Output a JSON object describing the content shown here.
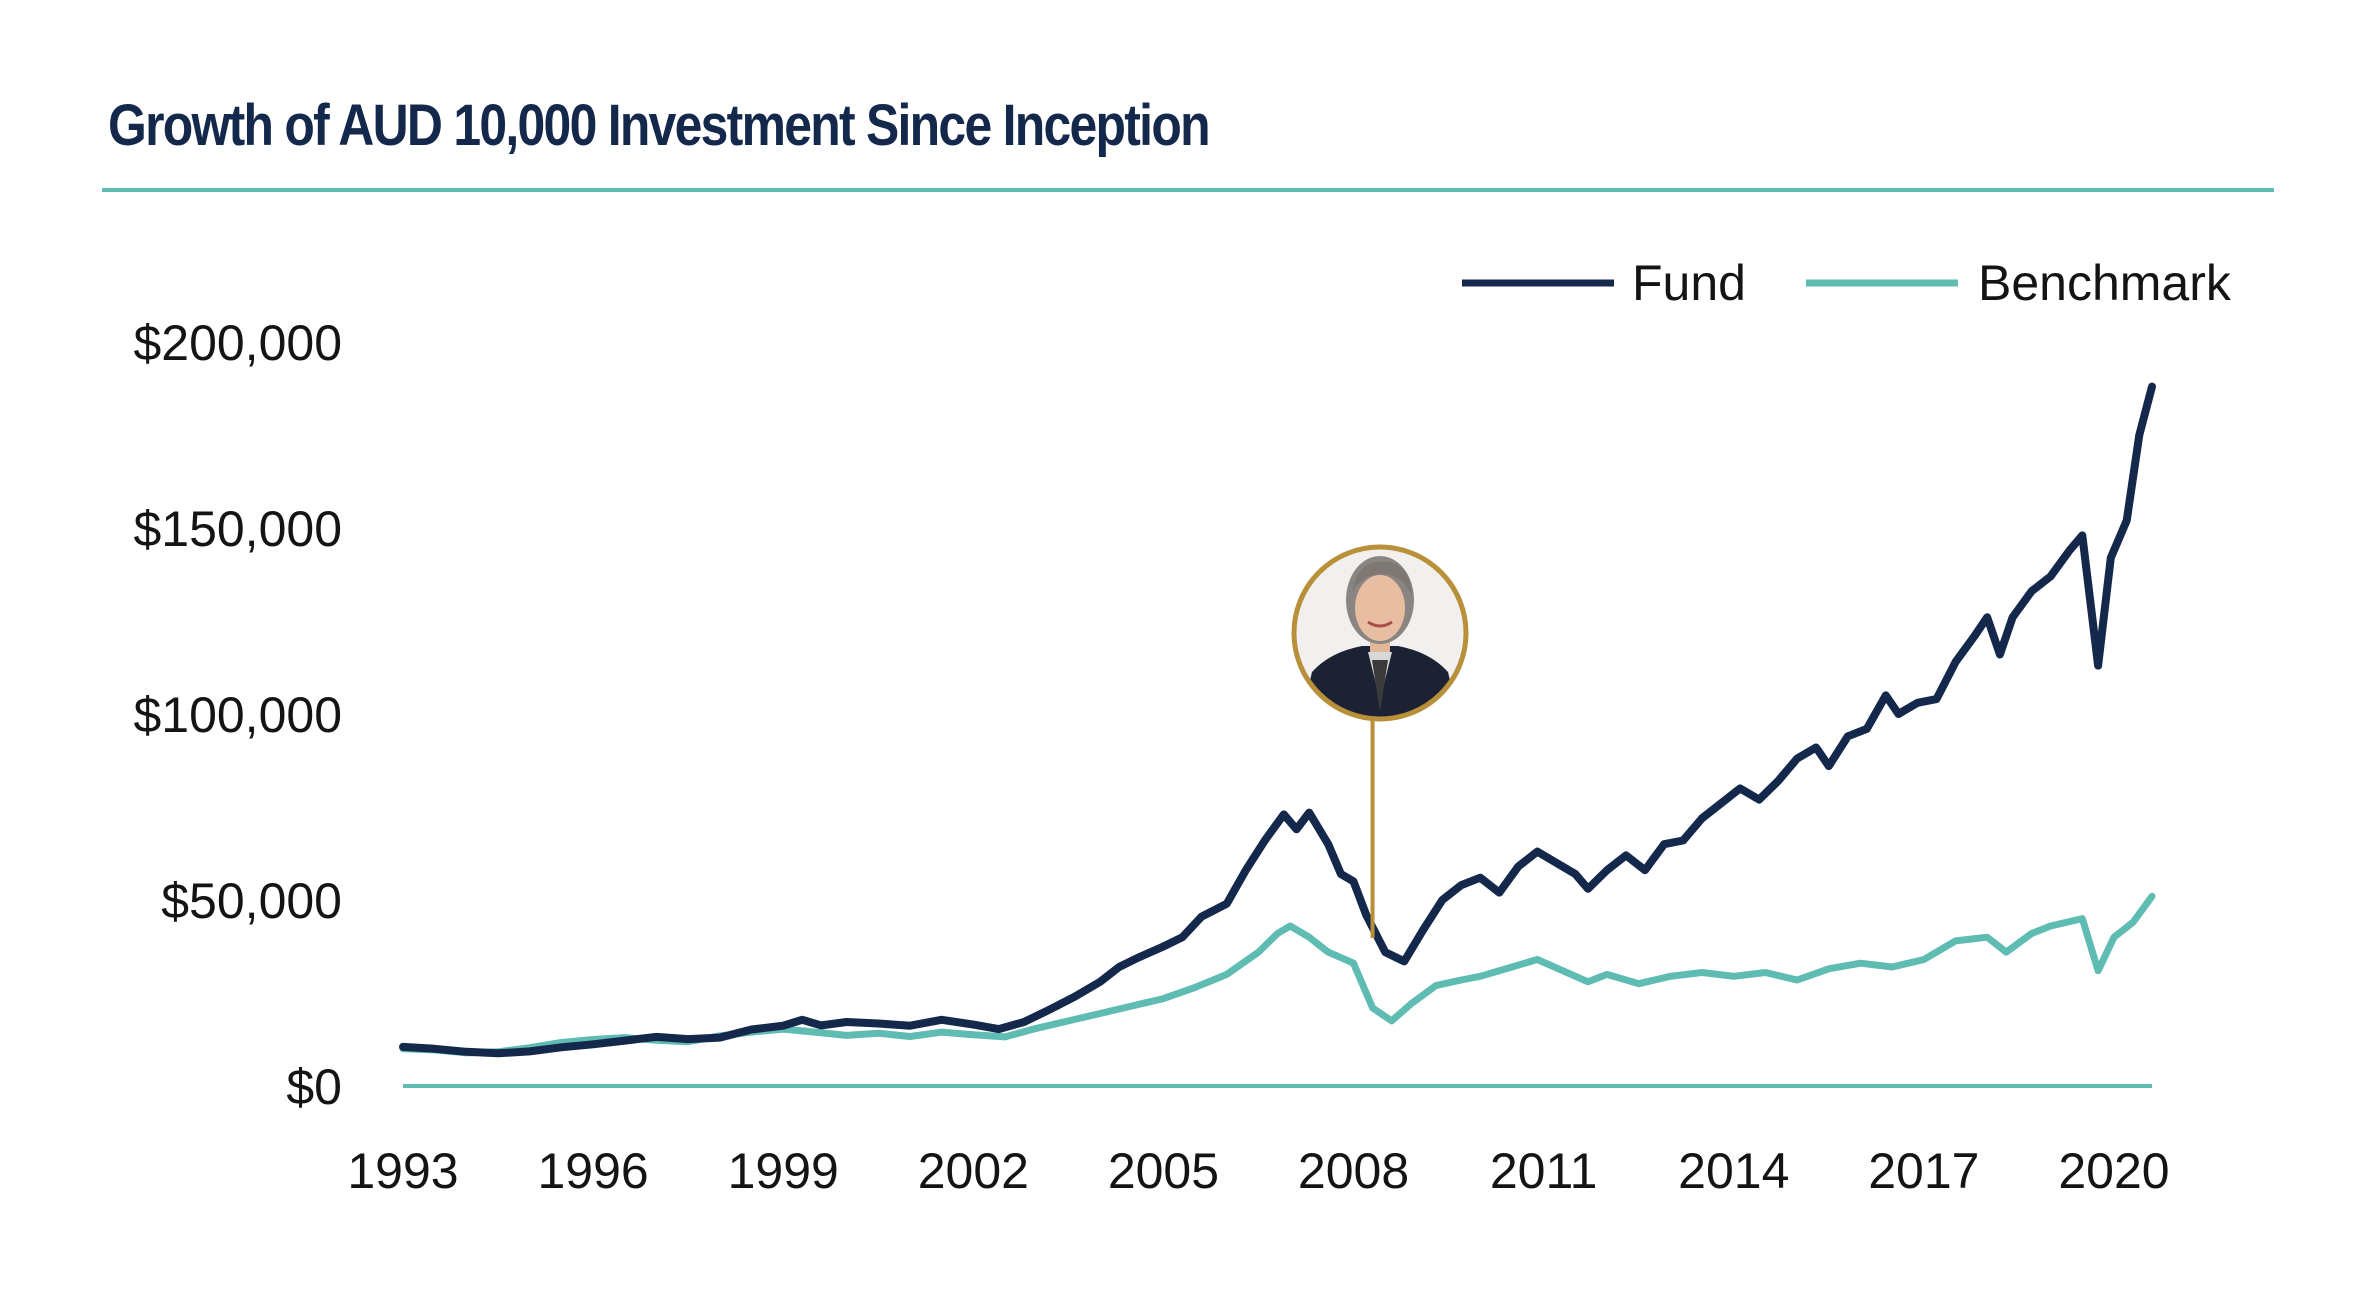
{
  "colors": {
    "fund": "#14284b",
    "benchmark": "#5fbcb2",
    "marker": "#b8903a",
    "rule": "#5fbcb2"
  },
  "marker": {
    "icon": "portrait-photo-icon",
    "x": 2008.3
  },
  "chart_data": {
    "type": "line",
    "title": "Growth of AUD 10,000 Investment Since Inception",
    "xlabel": "",
    "ylabel": "",
    "xlim": [
      1993,
      2020.6
    ],
    "ylim": [
      0,
      200000
    ],
    "x_ticks": [
      "1993",
      "1996",
      "1999",
      "2002",
      "2005",
      "2008",
      "2011",
      "2014",
      "2017",
      "2020"
    ],
    "y_ticks": [
      "$0",
      "$50,000",
      "$100,000",
      "$150,000",
      "$200,000"
    ],
    "legend": {
      "position": "top-right"
    },
    "grid": false,
    "series": [
      {
        "name": "Fund",
        "points": [
          [
            1993.0,
            10500
          ],
          [
            1993.5,
            10000
          ],
          [
            1994.0,
            9200
          ],
          [
            1994.5,
            8800
          ],
          [
            1995.0,
            9300
          ],
          [
            1995.5,
            10400
          ],
          [
            1996.0,
            11200
          ],
          [
            1996.5,
            12200
          ],
          [
            1997.0,
            13200
          ],
          [
            1997.5,
            12600
          ],
          [
            1998.0,
            13000
          ],
          [
            1998.5,
            15200
          ],
          [
            1999.0,
            16200
          ],
          [
            1999.3,
            17800
          ],
          [
            1999.6,
            16300
          ],
          [
            2000.0,
            17200
          ],
          [
            2000.5,
            16800
          ],
          [
            2001.0,
            16200
          ],
          [
            2001.5,
            17800
          ],
          [
            2002.0,
            16500
          ],
          [
            2002.4,
            15300
          ],
          [
            2002.8,
            17200
          ],
          [
            2003.2,
            20500
          ],
          [
            2003.6,
            24000
          ],
          [
            2004.0,
            28000
          ],
          [
            2004.3,
            32000
          ],
          [
            2004.6,
            34500
          ],
          [
            2005.0,
            37500
          ],
          [
            2005.3,
            40000
          ],
          [
            2005.6,
            45500
          ],
          [
            2006.0,
            49000
          ],
          [
            2006.3,
            58000
          ],
          [
            2006.6,
            66000
          ],
          [
            2006.9,
            73000
          ],
          [
            2007.1,
            69000
          ],
          [
            2007.3,
            73500
          ],
          [
            2007.6,
            65000
          ],
          [
            2007.8,
            57000
          ],
          [
            2008.0,
            55000
          ],
          [
            2008.2,
            46000
          ],
          [
            2008.5,
            36000
          ],
          [
            2008.8,
            33500
          ],
          [
            2009.1,
            42000
          ],
          [
            2009.4,
            50000
          ],
          [
            2009.7,
            54000
          ],
          [
            2010.0,
            56000
          ],
          [
            2010.3,
            52000
          ],
          [
            2010.6,
            59000
          ],
          [
            2010.9,
            63000
          ],
          [
            2011.2,
            60000
          ],
          [
            2011.5,
            57000
          ],
          [
            2011.7,
            53000
          ],
          [
            2012.0,
            58000
          ],
          [
            2012.3,
            62000
          ],
          [
            2012.6,
            58000
          ],
          [
            2012.9,
            65000
          ],
          [
            2013.2,
            66000
          ],
          [
            2013.5,
            72000
          ],
          [
            2013.8,
            76000
          ],
          [
            2014.1,
            80000
          ],
          [
            2014.4,
            77000
          ],
          [
            2014.7,
            82000
          ],
          [
            2015.0,
            88000
          ],
          [
            2015.3,
            91000
          ],
          [
            2015.5,
            86000
          ],
          [
            2015.8,
            94000
          ],
          [
            2016.1,
            96000
          ],
          [
            2016.4,
            105000
          ],
          [
            2016.6,
            100000
          ],
          [
            2016.9,
            103000
          ],
          [
            2017.2,
            104000
          ],
          [
            2017.5,
            114000
          ],
          [
            2017.8,
            121000
          ],
          [
            2018.0,
            126000
          ],
          [
            2018.2,
            116000
          ],
          [
            2018.4,
            126000
          ],
          [
            2018.7,
            133000
          ],
          [
            2019.0,
            137000
          ],
          [
            2019.3,
            144000
          ],
          [
            2019.5,
            148000
          ],
          [
            2019.75,
            113000
          ],
          [
            2019.95,
            142000
          ],
          [
            2020.2,
            152000
          ],
          [
            2020.4,
            175000
          ],
          [
            2020.6,
            188000
          ]
        ]
      },
      {
        "name": "Benchmark",
        "points": [
          [
            1993.0,
            10000
          ],
          [
            1993.5,
            9700
          ],
          [
            1994.0,
            8900
          ],
          [
            1994.5,
            9200
          ],
          [
            1995.0,
            10300
          ],
          [
            1995.5,
            11700
          ],
          [
            1996.0,
            12500
          ],
          [
            1996.5,
            13000
          ],
          [
            1997.0,
            12300
          ],
          [
            1997.5,
            11900
          ],
          [
            1998.0,
            13500
          ],
          [
            1998.5,
            14500
          ],
          [
            1999.0,
            15300
          ],
          [
            1999.5,
            14500
          ],
          [
            2000.0,
            13600
          ],
          [
            2000.5,
            14200
          ],
          [
            2001.0,
            13300
          ],
          [
            2001.5,
            14500
          ],
          [
            2002.0,
            13800
          ],
          [
            2002.5,
            13200
          ],
          [
            2003.0,
            15500
          ],
          [
            2003.5,
            17500
          ],
          [
            2004.0,
            19500
          ],
          [
            2004.5,
            21500
          ],
          [
            2005.0,
            23500
          ],
          [
            2005.5,
            26500
          ],
          [
            2006.0,
            30000
          ],
          [
            2006.5,
            36000
          ],
          [
            2006.8,
            41000
          ],
          [
            2007.0,
            43000
          ],
          [
            2007.3,
            40000
          ],
          [
            2007.6,
            36000
          ],
          [
            2008.0,
            33000
          ],
          [
            2008.3,
            21000
          ],
          [
            2008.6,
            17500
          ],
          [
            2008.9,
            22000
          ],
          [
            2009.3,
            27000
          ],
          [
            2009.7,
            28500
          ],
          [
            2010.0,
            29500
          ],
          [
            2010.5,
            32000
          ],
          [
            2010.9,
            34000
          ],
          [
            2011.3,
            31000
          ],
          [
            2011.7,
            28000
          ],
          [
            2012.0,
            30000
          ],
          [
            2012.5,
            27500
          ],
          [
            2013.0,
            29500
          ],
          [
            2013.5,
            30500
          ],
          [
            2014.0,
            29500
          ],
          [
            2014.5,
            30500
          ],
          [
            2015.0,
            28500
          ],
          [
            2015.5,
            31500
          ],
          [
            2016.0,
            33000
          ],
          [
            2016.5,
            32000
          ],
          [
            2017.0,
            34000
          ],
          [
            2017.5,
            39000
          ],
          [
            2018.0,
            40000
          ],
          [
            2018.3,
            36000
          ],
          [
            2018.7,
            41000
          ],
          [
            2019.0,
            43000
          ],
          [
            2019.5,
            45000
          ],
          [
            2019.75,
            31000
          ],
          [
            2020.0,
            40000
          ],
          [
            2020.3,
            44000
          ],
          [
            2020.6,
            51000
          ]
        ]
      }
    ]
  }
}
